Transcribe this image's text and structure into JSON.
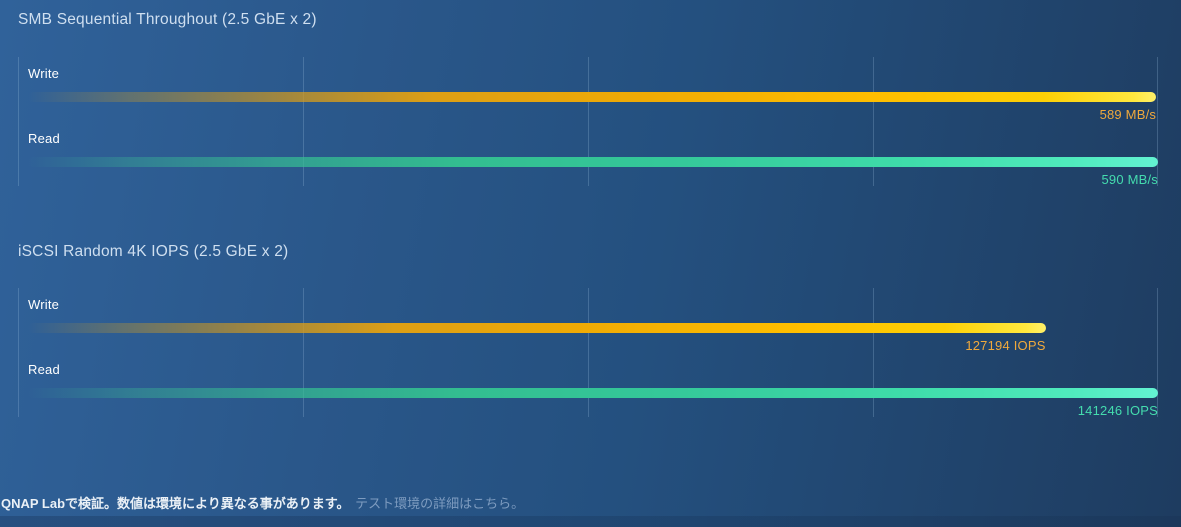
{
  "chart_data": [
    {
      "type": "bar",
      "orientation": "horizontal",
      "title": "SMB Sequential Throughout (2.5 GbE x 2)",
      "categories": [
        "Write",
        "Read"
      ],
      "values": [
        589,
        590
      ],
      "value_labels": [
        "589 MB/s",
        "590 MB/s"
      ],
      "unit": "MB/s",
      "xlim": [
        0,
        590
      ],
      "grid": true,
      "gridline_count": 5,
      "legend": "none",
      "bar_colors": {
        "write": "#ffc400",
        "read": "#45e0b2"
      }
    },
    {
      "type": "bar",
      "orientation": "horizontal",
      "title": "iSCSI Random 4K IOPS (2.5 GbE x 2)",
      "categories": [
        "Write",
        "Read"
      ],
      "values": [
        127194,
        141246
      ],
      "value_labels": [
        "127194 IOPS",
        "141246 IOPS"
      ],
      "unit": "IOPS",
      "xlim": [
        0,
        141246
      ],
      "grid": true,
      "gridline_count": 5,
      "legend": "none",
      "bar_colors": {
        "write": "#ffc400",
        "read": "#45e0b2"
      }
    }
  ],
  "footer": {
    "note": "QNAP Labで検証。数値は環境により異なる事があります。",
    "link": "テスト環境の詳細はこちら。"
  },
  "colors": {
    "background_left": "#30629a",
    "background_right": "#1e3c60",
    "title_text": "#cfdff0",
    "label_text": "#ffffff",
    "write_value_text": "#f0a93c",
    "read_value_text": "#44dcae",
    "gridline": "rgba(150,185,220,0.28)",
    "footer_note_text": "#eaf0f6",
    "footer_link_text": "#7e9cc0"
  }
}
